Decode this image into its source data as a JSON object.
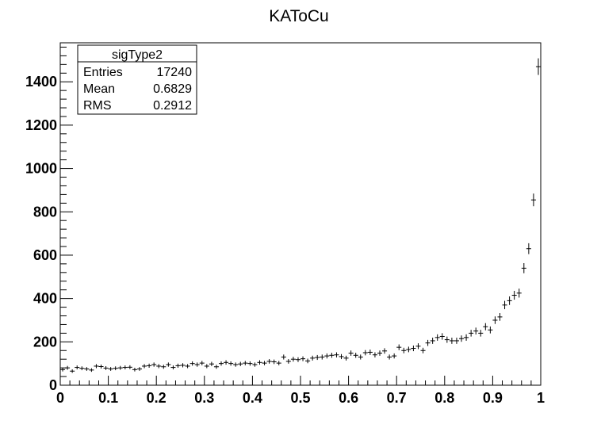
{
  "chart_data": {
    "type": "scatter",
    "title": "KAToCu",
    "xlabel": "",
    "ylabel": "",
    "xlim": [
      0,
      1
    ],
    "ylim": [
      0,
      1580
    ],
    "grid": false,
    "x_ticks": [
      0,
      0.1,
      0.2,
      0.3,
      0.4,
      0.5,
      0.6,
      0.7,
      0.8,
      0.9,
      1
    ],
    "x_tick_labels": [
      "0",
      "0.1",
      "0.2",
      "0.3",
      "0.4",
      "0.5",
      "0.6",
      "0.7",
      "0.8",
      "0.9",
      "1"
    ],
    "y_ticks": [
      0,
      200,
      400,
      600,
      800,
      1000,
      1200,
      1400
    ],
    "y_tick_labels": [
      "0",
      "200",
      "400",
      "600",
      "800",
      "1000",
      "1200",
      "1400"
    ],
    "stats_box": {
      "name": "sigType2",
      "placement": "top-left",
      "rows": [
        {
          "label": "Entries",
          "value": "17240"
        },
        {
          "label": "Mean",
          "value": "0.6829"
        },
        {
          "label": "RMS",
          "value": "0.2912"
        }
      ]
    },
    "bin_width": 0.01,
    "x": [
      0.005,
      0.015,
      0.025,
      0.035,
      0.045,
      0.055,
      0.065,
      0.075,
      0.085,
      0.095,
      0.105,
      0.115,
      0.125,
      0.135,
      0.145,
      0.155,
      0.165,
      0.175,
      0.185,
      0.195,
      0.205,
      0.215,
      0.225,
      0.235,
      0.245,
      0.255,
      0.265,
      0.275,
      0.285,
      0.295,
      0.305,
      0.315,
      0.325,
      0.335,
      0.345,
      0.355,
      0.365,
      0.375,
      0.385,
      0.395,
      0.405,
      0.415,
      0.425,
      0.435,
      0.445,
      0.455,
      0.465,
      0.475,
      0.485,
      0.495,
      0.505,
      0.515,
      0.525,
      0.535,
      0.545,
      0.555,
      0.565,
      0.575,
      0.585,
      0.595,
      0.605,
      0.615,
      0.625,
      0.635,
      0.645,
      0.655,
      0.665,
      0.675,
      0.685,
      0.695,
      0.705,
      0.715,
      0.725,
      0.735,
      0.745,
      0.755,
      0.765,
      0.775,
      0.785,
      0.795,
      0.805,
      0.815,
      0.825,
      0.835,
      0.845,
      0.855,
      0.865,
      0.875,
      0.885,
      0.895,
      0.905,
      0.915,
      0.925,
      0.935,
      0.945,
      0.955,
      0.965,
      0.975,
      0.985,
      0.995
    ],
    "values": [
      72,
      80,
      65,
      82,
      78,
      75,
      70,
      88,
      86,
      79,
      75,
      78,
      80,
      82,
      83,
      72,
      75,
      88,
      90,
      95,
      88,
      85,
      95,
      82,
      90,
      92,
      88,
      100,
      95,
      102,
      88,
      98,
      85,
      100,
      105,
      100,
      95,
      98,
      102,
      100,
      95,
      105,
      102,
      110,
      108,
      102,
      130,
      110,
      120,
      118,
      122,
      112,
      125,
      128,
      130,
      135,
      138,
      140,
      132,
      125,
      148,
      138,
      130,
      150,
      152,
      140,
      148,
      158,
      130,
      135,
      175,
      160,
      165,
      170,
      180,
      160,
      195,
      205,
      220,
      225,
      210,
      205,
      205,
      215,
      220,
      240,
      250,
      240,
      270,
      255,
      300,
      315,
      370,
      390,
      415,
      425,
      540,
      630,
      855,
      1470
    ]
  }
}
